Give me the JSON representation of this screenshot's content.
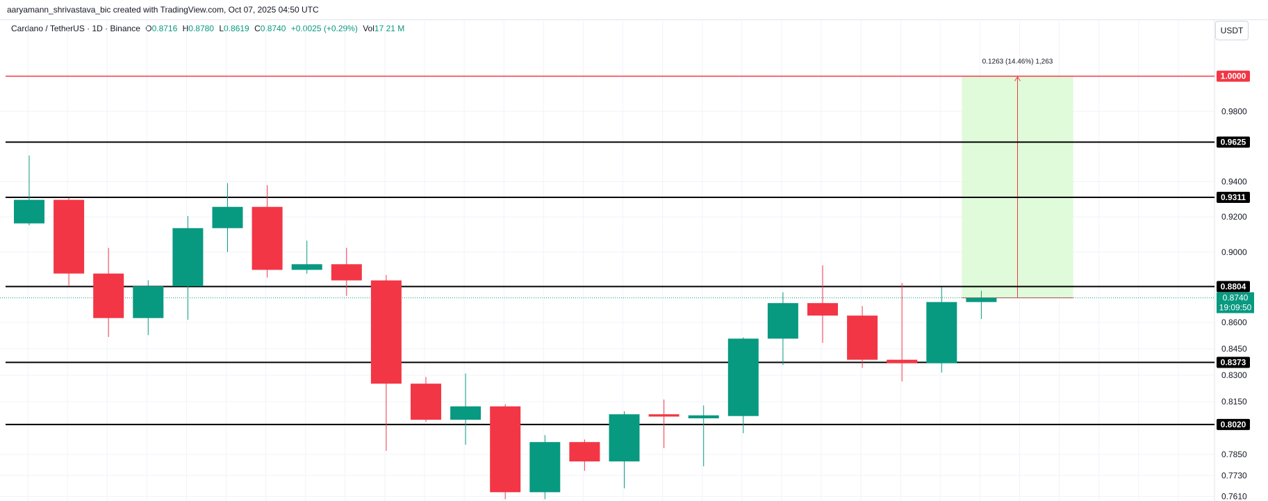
{
  "header": {
    "attribution": "aaryamann_shrivastava_bic created with TradingView.com, Oct 07, 2025 04:50 UTC"
  },
  "legend": {
    "symbol": "Cardano / TetherUS · 1D · Binance",
    "open_label": "O",
    "open": "0.8716",
    "high_label": "H",
    "high": "0.8780",
    "low_label": "L",
    "low": "0.8619",
    "close_label": "C",
    "close": "0.8740",
    "change": "+0.0025 (+0.29%)",
    "vol_label": "Vol",
    "vol": "17.21 M"
  },
  "currency": "USDT",
  "colors": {
    "up": "#089981",
    "down": "#f23645",
    "target_line": "#f23645",
    "level_line": "#000000",
    "projection_fill": "#ddfbd6"
  },
  "chart_data": {
    "type": "candlestick",
    "title": "Cardano / TetherUS · 1D · Binance",
    "ylim": [
      0.7585,
      1.0275
    ],
    "y_ticks": [
      "0.9800",
      "0.9400",
      "0.9200",
      "0.9000",
      "0.8600",
      "0.8450",
      "0.8300",
      "0.8150",
      "0.7850",
      "0.7730",
      "0.7610"
    ],
    "candles": [
      {
        "o": 0.9163,
        "h": 0.9549,
        "l": 0.9152,
        "c": 0.9297
      },
      {
        "o": 0.9297,
        "h": 0.931,
        "l": 0.881,
        "c": 0.8878
      },
      {
        "o": 0.8878,
        "h": 0.9024,
        "l": 0.8517,
        "c": 0.8625
      },
      {
        "o": 0.8625,
        "h": 0.884,
        "l": 0.8528,
        "c": 0.8806
      },
      {
        "o": 0.8806,
        "h": 0.9205,
        "l": 0.8615,
        "c": 0.9136
      },
      {
        "o": 0.9136,
        "h": 0.9392,
        "l": 0.9,
        "c": 0.9257
      },
      {
        "o": 0.9257,
        "h": 0.9381,
        "l": 0.8855,
        "c": 0.8899
      },
      {
        "o": 0.8899,
        "h": 0.9065,
        "l": 0.8877,
        "c": 0.8931
      },
      {
        "o": 0.8931,
        "h": 0.9024,
        "l": 0.8751,
        "c": 0.8839
      },
      {
        "o": 0.8839,
        "h": 0.887,
        "l": 0.787,
        "c": 0.8252
      },
      {
        "o": 0.8252,
        "h": 0.829,
        "l": 0.8035,
        "c": 0.8047
      },
      {
        "o": 0.8047,
        "h": 0.831,
        "l": 0.7905,
        "c": 0.8123
      },
      {
        "o": 0.8123,
        "h": 0.8135,
        "l": 0.7595,
        "c": 0.7635
      },
      {
        "o": 0.7635,
        "h": 0.796,
        "l": 0.7595,
        "c": 0.792
      },
      {
        "o": 0.792,
        "h": 0.7935,
        "l": 0.7757,
        "c": 0.781
      },
      {
        "o": 0.781,
        "h": 0.8095,
        "l": 0.7657,
        "c": 0.8078
      },
      {
        "o": 0.8078,
        "h": 0.8162,
        "l": 0.7885,
        "c": 0.8065
      },
      {
        "o": 0.8055,
        "h": 0.8128,
        "l": 0.7782,
        "c": 0.8072
      },
      {
        "o": 0.8068,
        "h": 0.8515,
        "l": 0.797,
        "c": 0.8508
      },
      {
        "o": 0.8508,
        "h": 0.8772,
        "l": 0.8358,
        "c": 0.871
      },
      {
        "o": 0.871,
        "h": 0.8925,
        "l": 0.8484,
        "c": 0.8639
      },
      {
        "o": 0.8639,
        "h": 0.8693,
        "l": 0.8342,
        "c": 0.8388
      },
      {
        "o": 0.8388,
        "h": 0.8825,
        "l": 0.8265,
        "c": 0.8368
      },
      {
        "o": 0.8368,
        "h": 0.88,
        "l": 0.8315,
        "c": 0.8716
      },
      {
        "o": 0.8716,
        "h": 0.878,
        "l": 0.8619,
        "c": 0.874
      }
    ],
    "levels": [
      {
        "value": 1.0,
        "label": "1.0000",
        "kind": "target"
      },
      {
        "value": 0.9625,
        "label": "0.9625",
        "kind": "level"
      },
      {
        "value": 0.9311,
        "label": "0.9311",
        "kind": "level"
      },
      {
        "value": 0.8804,
        "label": "0.8804",
        "kind": "level"
      },
      {
        "value": 0.8373,
        "label": "0.8373",
        "kind": "level"
      },
      {
        "value": 0.802,
        "label": "0.8020",
        "kind": "level"
      }
    ],
    "last_price": {
      "value": 0.874,
      "label": "0.8740",
      "countdown": "19:09:50"
    },
    "projection": {
      "from": 0.874,
      "to": 1.0,
      "label": "0.1263 (14.46%) 1,263"
    }
  }
}
